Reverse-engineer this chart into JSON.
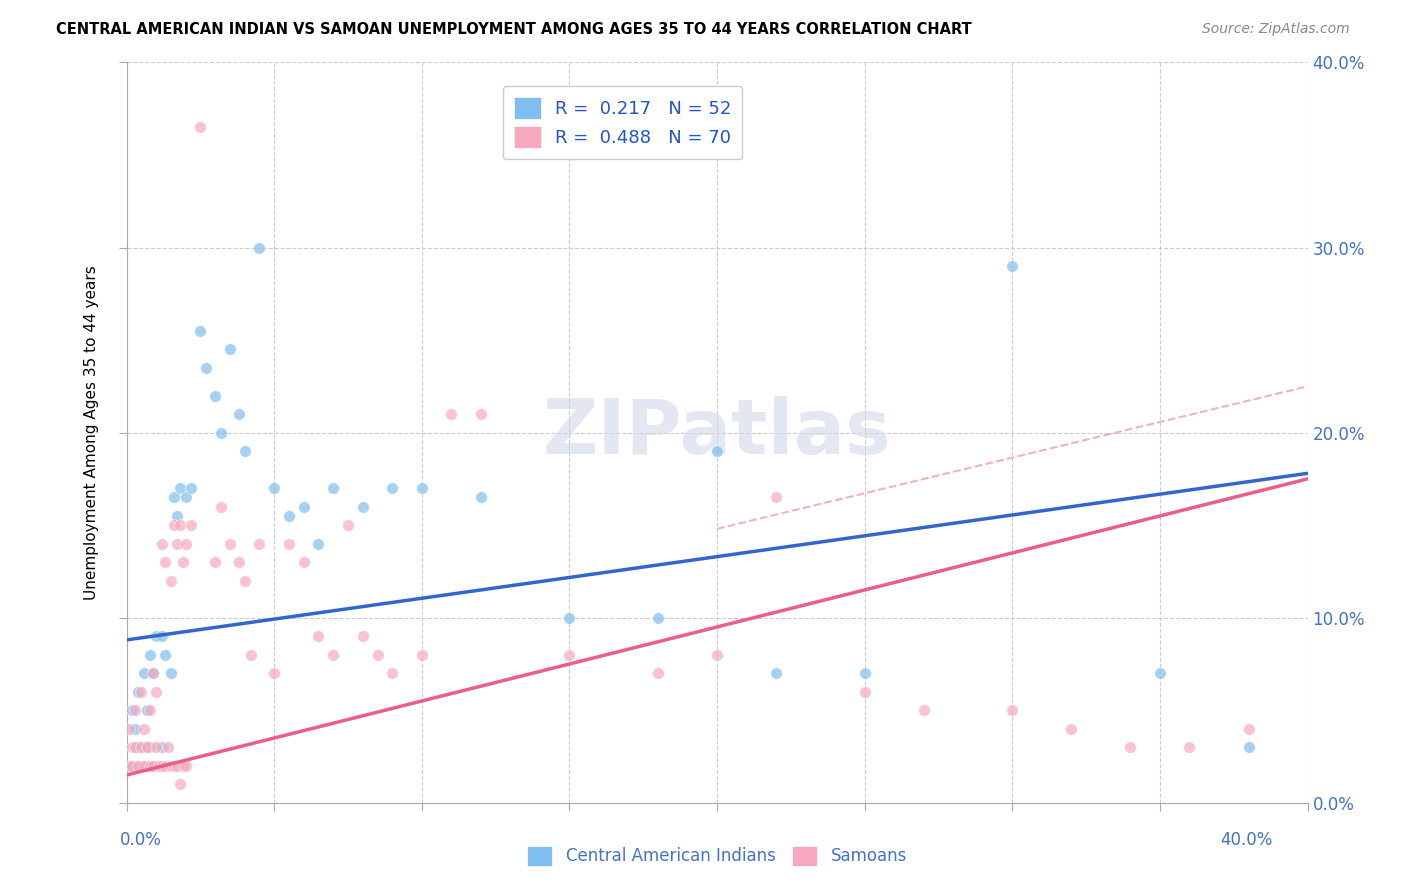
{
  "title": "CENTRAL AMERICAN INDIAN VS SAMOAN UNEMPLOYMENT AMONG AGES 35 TO 44 YEARS CORRELATION CHART",
  "source": "Source: ZipAtlas.com",
  "ylabel": "Unemployment Among Ages 35 to 44 years",
  "legend_label1": "Central American Indians",
  "legend_label2": "Samoans",
  "legend_r1": "R =  0.217",
  "legend_n1": "N = 52",
  "legend_r2": "R =  0.488",
  "legend_n2": "N = 70",
  "watermark": "ZIPatlas",
  "color_blue": "#7fbfef",
  "color_pink": "#f7a8be",
  "color_blue_line": "#3366cc",
  "color_pink_line": "#e8608a",
  "color_dashed": "#e8a0b8",
  "background": "#ffffff",
  "blue_scatter_x": [
    0.002,
    0.003,
    0.004,
    0.005,
    0.006,
    0.007,
    0.008,
    0.009,
    0.01,
    0.012,
    0.013,
    0.015,
    0.016,
    0.017,
    0.018,
    0.02,
    0.022,
    0.025,
    0.027,
    0.03,
    0.032,
    0.035,
    0.038,
    0.04,
    0.045,
    0.05,
    0.055,
    0.06,
    0.065,
    0.07,
    0.08,
    0.09,
    0.1,
    0.12,
    0.15,
    0.18,
    0.2,
    0.22,
    0.25,
    0.3,
    0.35,
    0.38,
    0.002,
    0.003,
    0.004,
    0.005,
    0.006,
    0.007,
    0.008,
    0.009,
    0.01,
    0.012
  ],
  "blue_scatter_y": [
    0.05,
    0.04,
    0.06,
    0.03,
    0.07,
    0.05,
    0.08,
    0.07,
    0.09,
    0.09,
    0.08,
    0.07,
    0.165,
    0.155,
    0.17,
    0.165,
    0.17,
    0.255,
    0.235,
    0.22,
    0.2,
    0.245,
    0.21,
    0.19,
    0.3,
    0.17,
    0.155,
    0.16,
    0.14,
    0.17,
    0.16,
    0.17,
    0.17,
    0.165,
    0.1,
    0.1,
    0.19,
    0.07,
    0.07,
    0.29,
    0.07,
    0.03,
    0.02,
    0.02,
    0.03,
    0.02,
    0.03,
    0.02,
    0.03,
    0.02,
    0.02,
    0.03
  ],
  "pink_scatter_x": [
    0.001,
    0.002,
    0.003,
    0.004,
    0.005,
    0.006,
    0.007,
    0.008,
    0.009,
    0.01,
    0.012,
    0.013,
    0.015,
    0.016,
    0.017,
    0.018,
    0.019,
    0.02,
    0.022,
    0.025,
    0.03,
    0.032,
    0.035,
    0.038,
    0.04,
    0.042,
    0.045,
    0.05,
    0.055,
    0.06,
    0.065,
    0.07,
    0.075,
    0.08,
    0.085,
    0.09,
    0.1,
    0.11,
    0.12,
    0.15,
    0.18,
    0.2,
    0.22,
    0.25,
    0.27,
    0.3,
    0.32,
    0.34,
    0.36,
    0.38,
    0.001,
    0.002,
    0.003,
    0.004,
    0.005,
    0.006,
    0.007,
    0.008,
    0.009,
    0.01,
    0.011,
    0.012,
    0.013,
    0.014,
    0.015,
    0.016,
    0.017,
    0.018,
    0.019,
    0.02
  ],
  "pink_scatter_y": [
    0.04,
    0.03,
    0.05,
    0.02,
    0.06,
    0.04,
    0.03,
    0.05,
    0.07,
    0.06,
    0.14,
    0.13,
    0.12,
    0.15,
    0.14,
    0.15,
    0.13,
    0.14,
    0.15,
    0.365,
    0.13,
    0.16,
    0.14,
    0.13,
    0.12,
    0.08,
    0.14,
    0.07,
    0.14,
    0.13,
    0.09,
    0.08,
    0.15,
    0.09,
    0.08,
    0.07,
    0.08,
    0.21,
    0.21,
    0.08,
    0.07,
    0.08,
    0.165,
    0.06,
    0.05,
    0.05,
    0.04,
    0.03,
    0.03,
    0.04,
    0.02,
    0.02,
    0.03,
    0.02,
    0.03,
    0.02,
    0.03,
    0.02,
    0.02,
    0.03,
    0.02,
    0.02,
    0.02,
    0.03,
    0.02,
    0.02,
    0.02,
    0.01,
    0.02,
    0.02
  ],
  "xlim": [
    0.0,
    0.4
  ],
  "ylim": [
    0.0,
    0.4
  ],
  "blue_line_x0": 0.0,
  "blue_line_x1": 0.4,
  "blue_line_y0": 0.088,
  "blue_line_y1": 0.178,
  "pink_line_x0": 0.0,
  "pink_line_x1": 0.4,
  "pink_line_y0": 0.015,
  "pink_line_y1": 0.175,
  "dashed_line_x0": 0.2,
  "dashed_line_x1": 0.4,
  "dashed_line_y0": 0.148,
  "dashed_line_y1": 0.225
}
